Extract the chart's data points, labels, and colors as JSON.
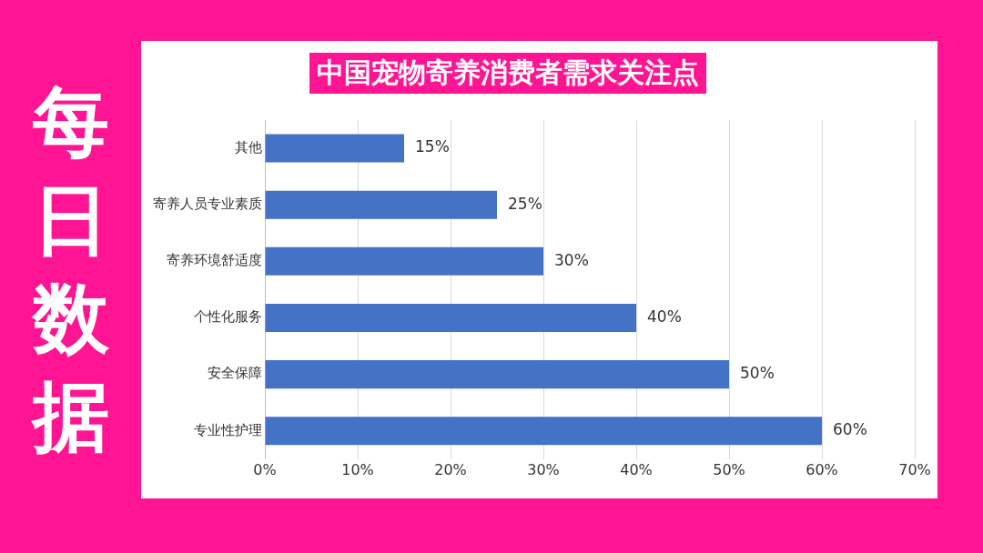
{
  "chart_data": {
    "type": "bar",
    "orientation": "horizontal",
    "title": "中国宠物寄养消费者需求关注点",
    "subtitle": "每日数据",
    "categories": [
      "其他",
      "寄养人员专业素质",
      "寄养环境舒适度",
      "个性化服务",
      "安全保障",
      "专业性护理"
    ],
    "values": [
      15,
      25,
      30,
      40,
      50,
      60
    ],
    "color": "#4472c4",
    "value_labels": [
      "15%",
      "25%",
      "30%",
      "40%",
      "50%",
      "60%"
    ],
    "xlim": [
      0,
      70
    ],
    "xticks": [
      {
        "value": 0,
        "label": "0%"
      },
      {
        "value": 10,
        "label": "10%"
      },
      {
        "value": 20,
        "label": "20%"
      },
      {
        "value": 30,
        "label": "30%"
      },
      {
        "value": 40,
        "label": "40%"
      },
      {
        "value": 50,
        "label": "50%"
      },
      {
        "value": 60,
        "label": "60%"
      },
      {
        "value": 70,
        "label": "70%"
      }
    ],
    "grid": "x",
    "legend": false
  }
}
